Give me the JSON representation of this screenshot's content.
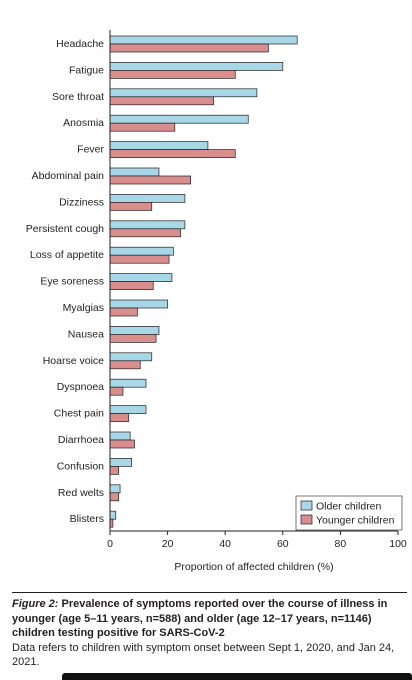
{
  "chart_data": {
    "type": "bar",
    "orientation": "horizontal",
    "categories": [
      "Headache",
      "Fatigue",
      "Sore throat",
      "Anosmia",
      "Fever",
      "Abdominal pain",
      "Dizziness",
      "Persistent cough",
      "Loss of appetite",
      "Eye soreness",
      "Myalgias",
      "Nausea",
      "Hoarse voice",
      "Dyspnoea",
      "Chest pain",
      "Diarrhoea",
      "Confusion",
      "Red welts",
      "Blisters"
    ],
    "series": [
      {
        "name": "Older children",
        "color": "#a8d8e8",
        "values": [
          65,
          60,
          51,
          48,
          34,
          17,
          26,
          26,
          22,
          21.5,
          20,
          17,
          14.5,
          12.5,
          12.5,
          7,
          7.5,
          3.5,
          2
        ]
      },
      {
        "name": "Younger children",
        "color": "#d98e8e",
        "values": [
          55,
          43.5,
          36,
          22.5,
          43.5,
          28,
          14.5,
          24.5,
          20.5,
          15,
          9.5,
          16,
          10.5,
          4.5,
          6.5,
          8.5,
          3,
          3,
          1
        ]
      }
    ],
    "xlabel": "Proportion of affected children (%)",
    "xlim": [
      0,
      100
    ],
    "xticks": [
      0,
      20,
      40,
      60,
      80,
      100
    ],
    "legend_position": "bottom-right",
    "grid": false
  },
  "caption": {
    "label": "Figure 2:",
    "title": "Prevalence of symptoms reported over the course of illness in younger (age 5–11 years, n=588) and older (age 12–17 years, n=1146) children testing positive for SARS-CoV-2",
    "note": "Data refers to children with symptom onset between Sept 1, 2020, and Jan 24, 2021."
  }
}
